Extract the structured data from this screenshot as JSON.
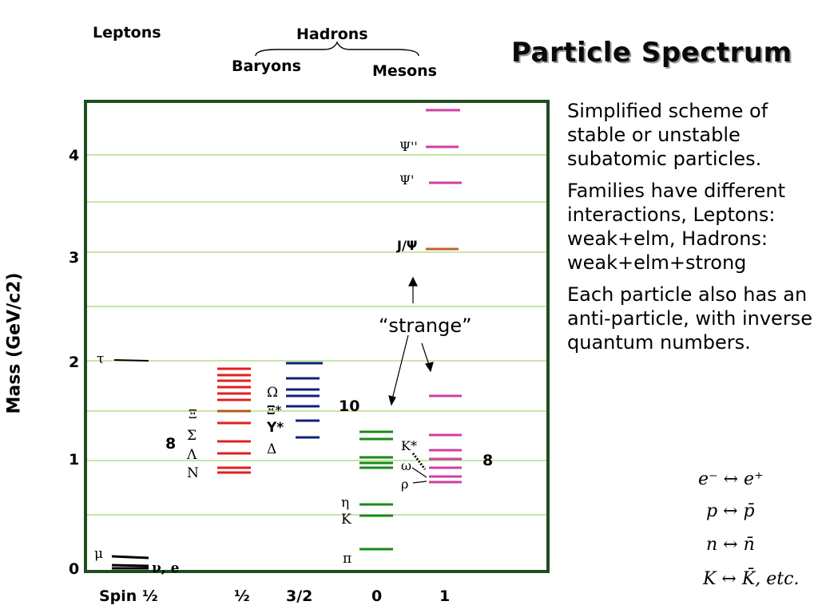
{
  "title": "Particle Spectrum",
  "headers": {
    "leptons": "Leptons",
    "hadrons": "Hadrons",
    "baryons": "Baryons",
    "mesons": "Mesons"
  },
  "yaxis": {
    "label": "Mass (GeV/c2)",
    "ticks": [
      "0",
      "1",
      "2",
      "3",
      "4"
    ]
  },
  "xaxis": {
    "ticks": [
      "Spin ½",
      "½",
      "3/2",
      "0",
      "1"
    ]
  },
  "colors": {
    "frame": "#1f4d1f",
    "grid": "#a8d870",
    "lepton": "#000000",
    "baryon_half": "#e02020",
    "baryon_32": "#10207a",
    "meson_0": "#1a8a1a",
    "meson_1": "#d040a0"
  },
  "labels": {
    "tau": "τ",
    "mu": "μ",
    "nu_e": "ν, e",
    "xi": "Ξ",
    "sigma": "Σ",
    "lambda": "Λ",
    "nucleon": "N",
    "octet_baryon": "8",
    "omega_baryon": "Ω",
    "xi_star": "Ξ*",
    "y_star": "Y*",
    "delta": "Δ",
    "decuplet": "10",
    "eta": "η",
    "kaon": "K",
    "pion": "π",
    "k_star": "K*",
    "omega_meson": "ω",
    "rho": "ρ",
    "octet_meson": "8",
    "psi2": "Ψ''",
    "psi1": "Ψ'",
    "jpsi": "J/Ψ",
    "strange": "“strange”"
  },
  "description": [
    "Simplified scheme of stable or unstable subatomic particles.",
    "Families have different interactions, Leptons: weak+elm, Hadrons: weak+elm+strong",
    "Each particle also has an anti-particle, with inverse quantum numbers."
  ],
  "antiparticles": [
    "e⁻ ↔ e⁺",
    "p ↔ p̄",
    "n ↔ n̄",
    "K ↔ K̄, etc."
  ]
}
